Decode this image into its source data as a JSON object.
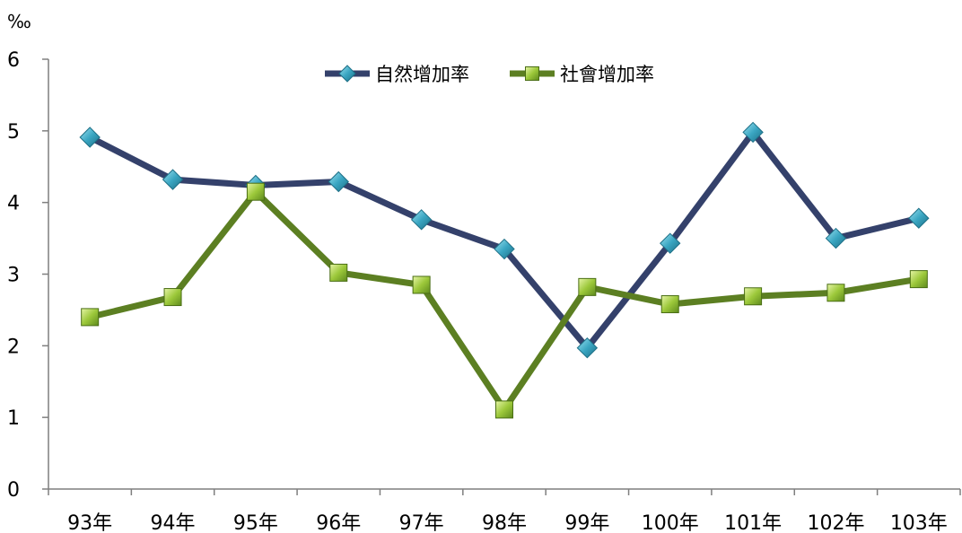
{
  "chart_data": {
    "type": "line",
    "title": "",
    "xlabel": "",
    "ylabel": "‰",
    "ylim": [
      0,
      6
    ],
    "yticks": [
      "0",
      "1",
      "2",
      "3",
      "4",
      "5",
      "6"
    ],
    "grid": false,
    "legend_position": "top-center",
    "categories": [
      "93年",
      "94年",
      "95年",
      "96年",
      "97年",
      "98年",
      "99年",
      "100年",
      "101年",
      "102年",
      "103年"
    ],
    "series": [
      {
        "name": "自然增加率",
        "line_color": "#34416b",
        "marker": "diamond",
        "marker_color": "#3aa6c2",
        "values": [
          4.91,
          4.32,
          4.24,
          4.29,
          3.76,
          3.35,
          1.97,
          3.43,
          4.98,
          3.5,
          3.78
        ]
      },
      {
        "name": "社會增加率",
        "line_color": "#5c7f22",
        "marker": "square",
        "marker_color": "#9cc83a",
        "values": [
          2.4,
          2.68,
          4.15,
          3.02,
          2.85,
          1.11,
          2.82,
          2.58,
          2.69,
          2.74,
          2.93
        ]
      }
    ]
  }
}
